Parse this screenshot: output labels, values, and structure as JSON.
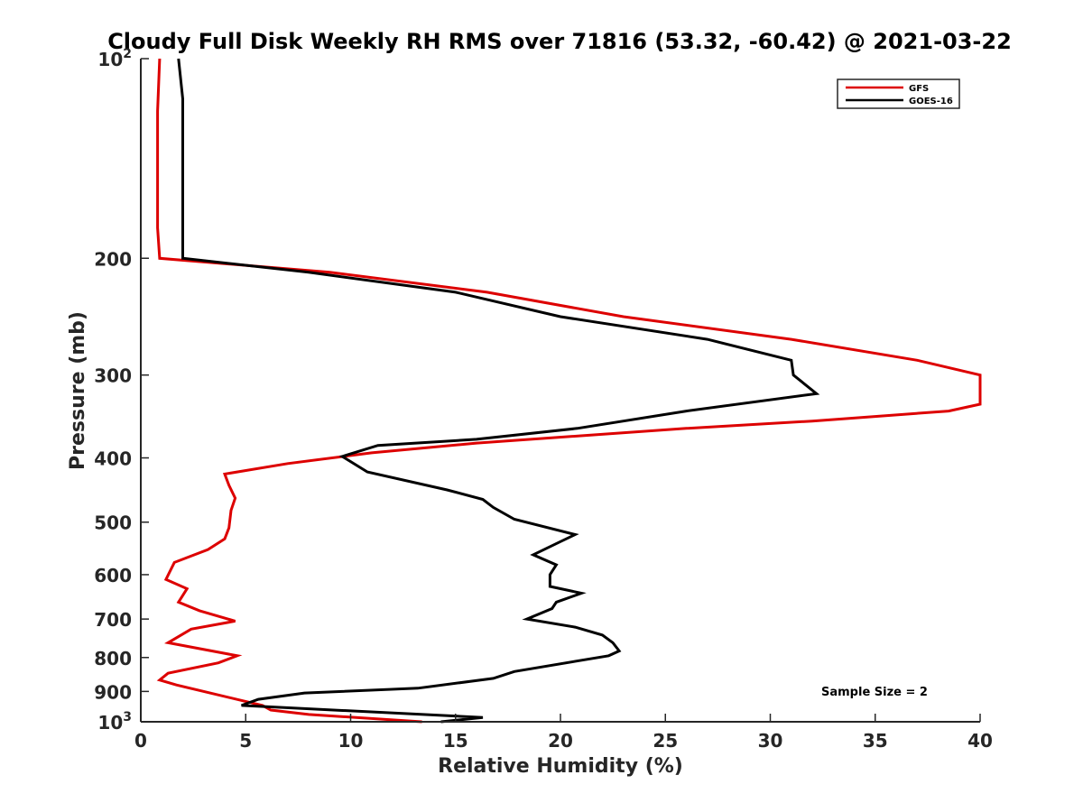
{
  "chart_data": {
    "type": "line",
    "title": "Cloudy Full Disk Weekly RH RMS over 71816 (53.32, -60.42) @ 2021-03-22",
    "xlabel": "Relative Humidity (%)",
    "ylabel": "Pressure (mb)",
    "xlim": [
      0,
      40
    ],
    "ylim": [
      100,
      1000
    ],
    "y_scale": "log",
    "y_reversed": true,
    "x_ticks": [
      0,
      5,
      10,
      15,
      20,
      25,
      30,
      35,
      40
    ],
    "x_tick_labels": [
      "0",
      "5",
      "10",
      "15",
      "20",
      "25",
      "30",
      "35",
      "40"
    ],
    "y_ticks": [
      100,
      200,
      300,
      400,
      500,
      600,
      700,
      800,
      900,
      1000
    ],
    "y_tick_labels": [
      {
        "base": "10",
        "exp": "2"
      },
      {
        "base": "200",
        "exp": ""
      },
      {
        "base": "300",
        "exp": ""
      },
      {
        "base": "400",
        "exp": ""
      },
      {
        "base": "500",
        "exp": ""
      },
      {
        "base": "600",
        "exp": ""
      },
      {
        "base": "700",
        "exp": ""
      },
      {
        "base": "800",
        "exp": ""
      },
      {
        "base": "900",
        "exp": ""
      },
      {
        "base": "10",
        "exp": "3"
      }
    ],
    "grid": false,
    "legend_position": "top-right",
    "annotation": "Sample Size = 2",
    "series": [
      {
        "name": "GFS",
        "color": "#dd0000",
        "points": [
          [
            0.9,
            100
          ],
          [
            0.8,
            120
          ],
          [
            0.8,
            150
          ],
          [
            0.8,
            180
          ],
          [
            0.9,
            200
          ],
          [
            9.0,
            210
          ],
          [
            16.5,
            225
          ],
          [
            23.0,
            245
          ],
          [
            31.0,
            265
          ],
          [
            37.0,
            285
          ],
          [
            40.0,
            300
          ],
          [
            40.0,
            332
          ],
          [
            38.5,
            340
          ],
          [
            32.0,
            352
          ],
          [
            26.0,
            361
          ],
          [
            16.0,
            380
          ],
          [
            11.0,
            393
          ],
          [
            7.0,
            408
          ],
          [
            4.0,
            423
          ],
          [
            4.2,
            440
          ],
          [
            4.5,
            460
          ],
          [
            4.3,
            480
          ],
          [
            4.2,
            510
          ],
          [
            4.0,
            530
          ],
          [
            3.2,
            550
          ],
          [
            1.6,
            575
          ],
          [
            1.2,
            610
          ],
          [
            2.2,
            630
          ],
          [
            1.8,
            660
          ],
          [
            2.8,
            680
          ],
          [
            4.5,
            705
          ],
          [
            2.4,
            725
          ],
          [
            1.3,
            760
          ],
          [
            4.6,
            795
          ],
          [
            3.7,
            815
          ],
          [
            1.3,
            845
          ],
          [
            0.9,
            865
          ],
          [
            1.7,
            880
          ],
          [
            5.8,
            945
          ],
          [
            6.2,
            960
          ],
          [
            8.0,
            975
          ],
          [
            13.4,
            1000
          ]
        ]
      },
      {
        "name": "GOES-16",
        "color": "#000000",
        "points": [
          [
            1.8,
            100
          ],
          [
            2.0,
            115
          ],
          [
            2.0,
            150
          ],
          [
            2.0,
            200
          ],
          [
            8.0,
            210
          ],
          [
            15.0,
            225
          ],
          [
            20.0,
            245
          ],
          [
            27.0,
            265
          ],
          [
            31.0,
            285
          ],
          [
            31.1,
            300
          ],
          [
            32.2,
            320
          ],
          [
            26.0,
            340
          ],
          [
            20.8,
            361
          ],
          [
            16.0,
            375
          ],
          [
            11.3,
            383
          ],
          [
            9.6,
            398
          ],
          [
            10.8,
            420
          ],
          [
            14.6,
            447
          ],
          [
            16.3,
            462
          ],
          [
            16.8,
            475
          ],
          [
            17.8,
            495
          ],
          [
            20.7,
            522
          ],
          [
            20.0,
            535
          ],
          [
            18.7,
            560
          ],
          [
            19.8,
            580
          ],
          [
            19.5,
            600
          ],
          [
            19.5,
            625
          ],
          [
            21.0,
            640
          ],
          [
            19.8,
            660
          ],
          [
            19.6,
            675
          ],
          [
            18.4,
            700
          ],
          [
            20.7,
            720
          ],
          [
            22.0,
            740
          ],
          [
            22.5,
            760
          ],
          [
            22.8,
            782
          ],
          [
            22.3,
            795
          ],
          [
            17.8,
            840
          ],
          [
            16.8,
            860
          ],
          [
            13.2,
            890
          ],
          [
            7.8,
            905
          ],
          [
            5.6,
            925
          ],
          [
            4.8,
            945
          ],
          [
            16.3,
            985
          ],
          [
            14.3,
            1000
          ]
        ]
      }
    ]
  }
}
